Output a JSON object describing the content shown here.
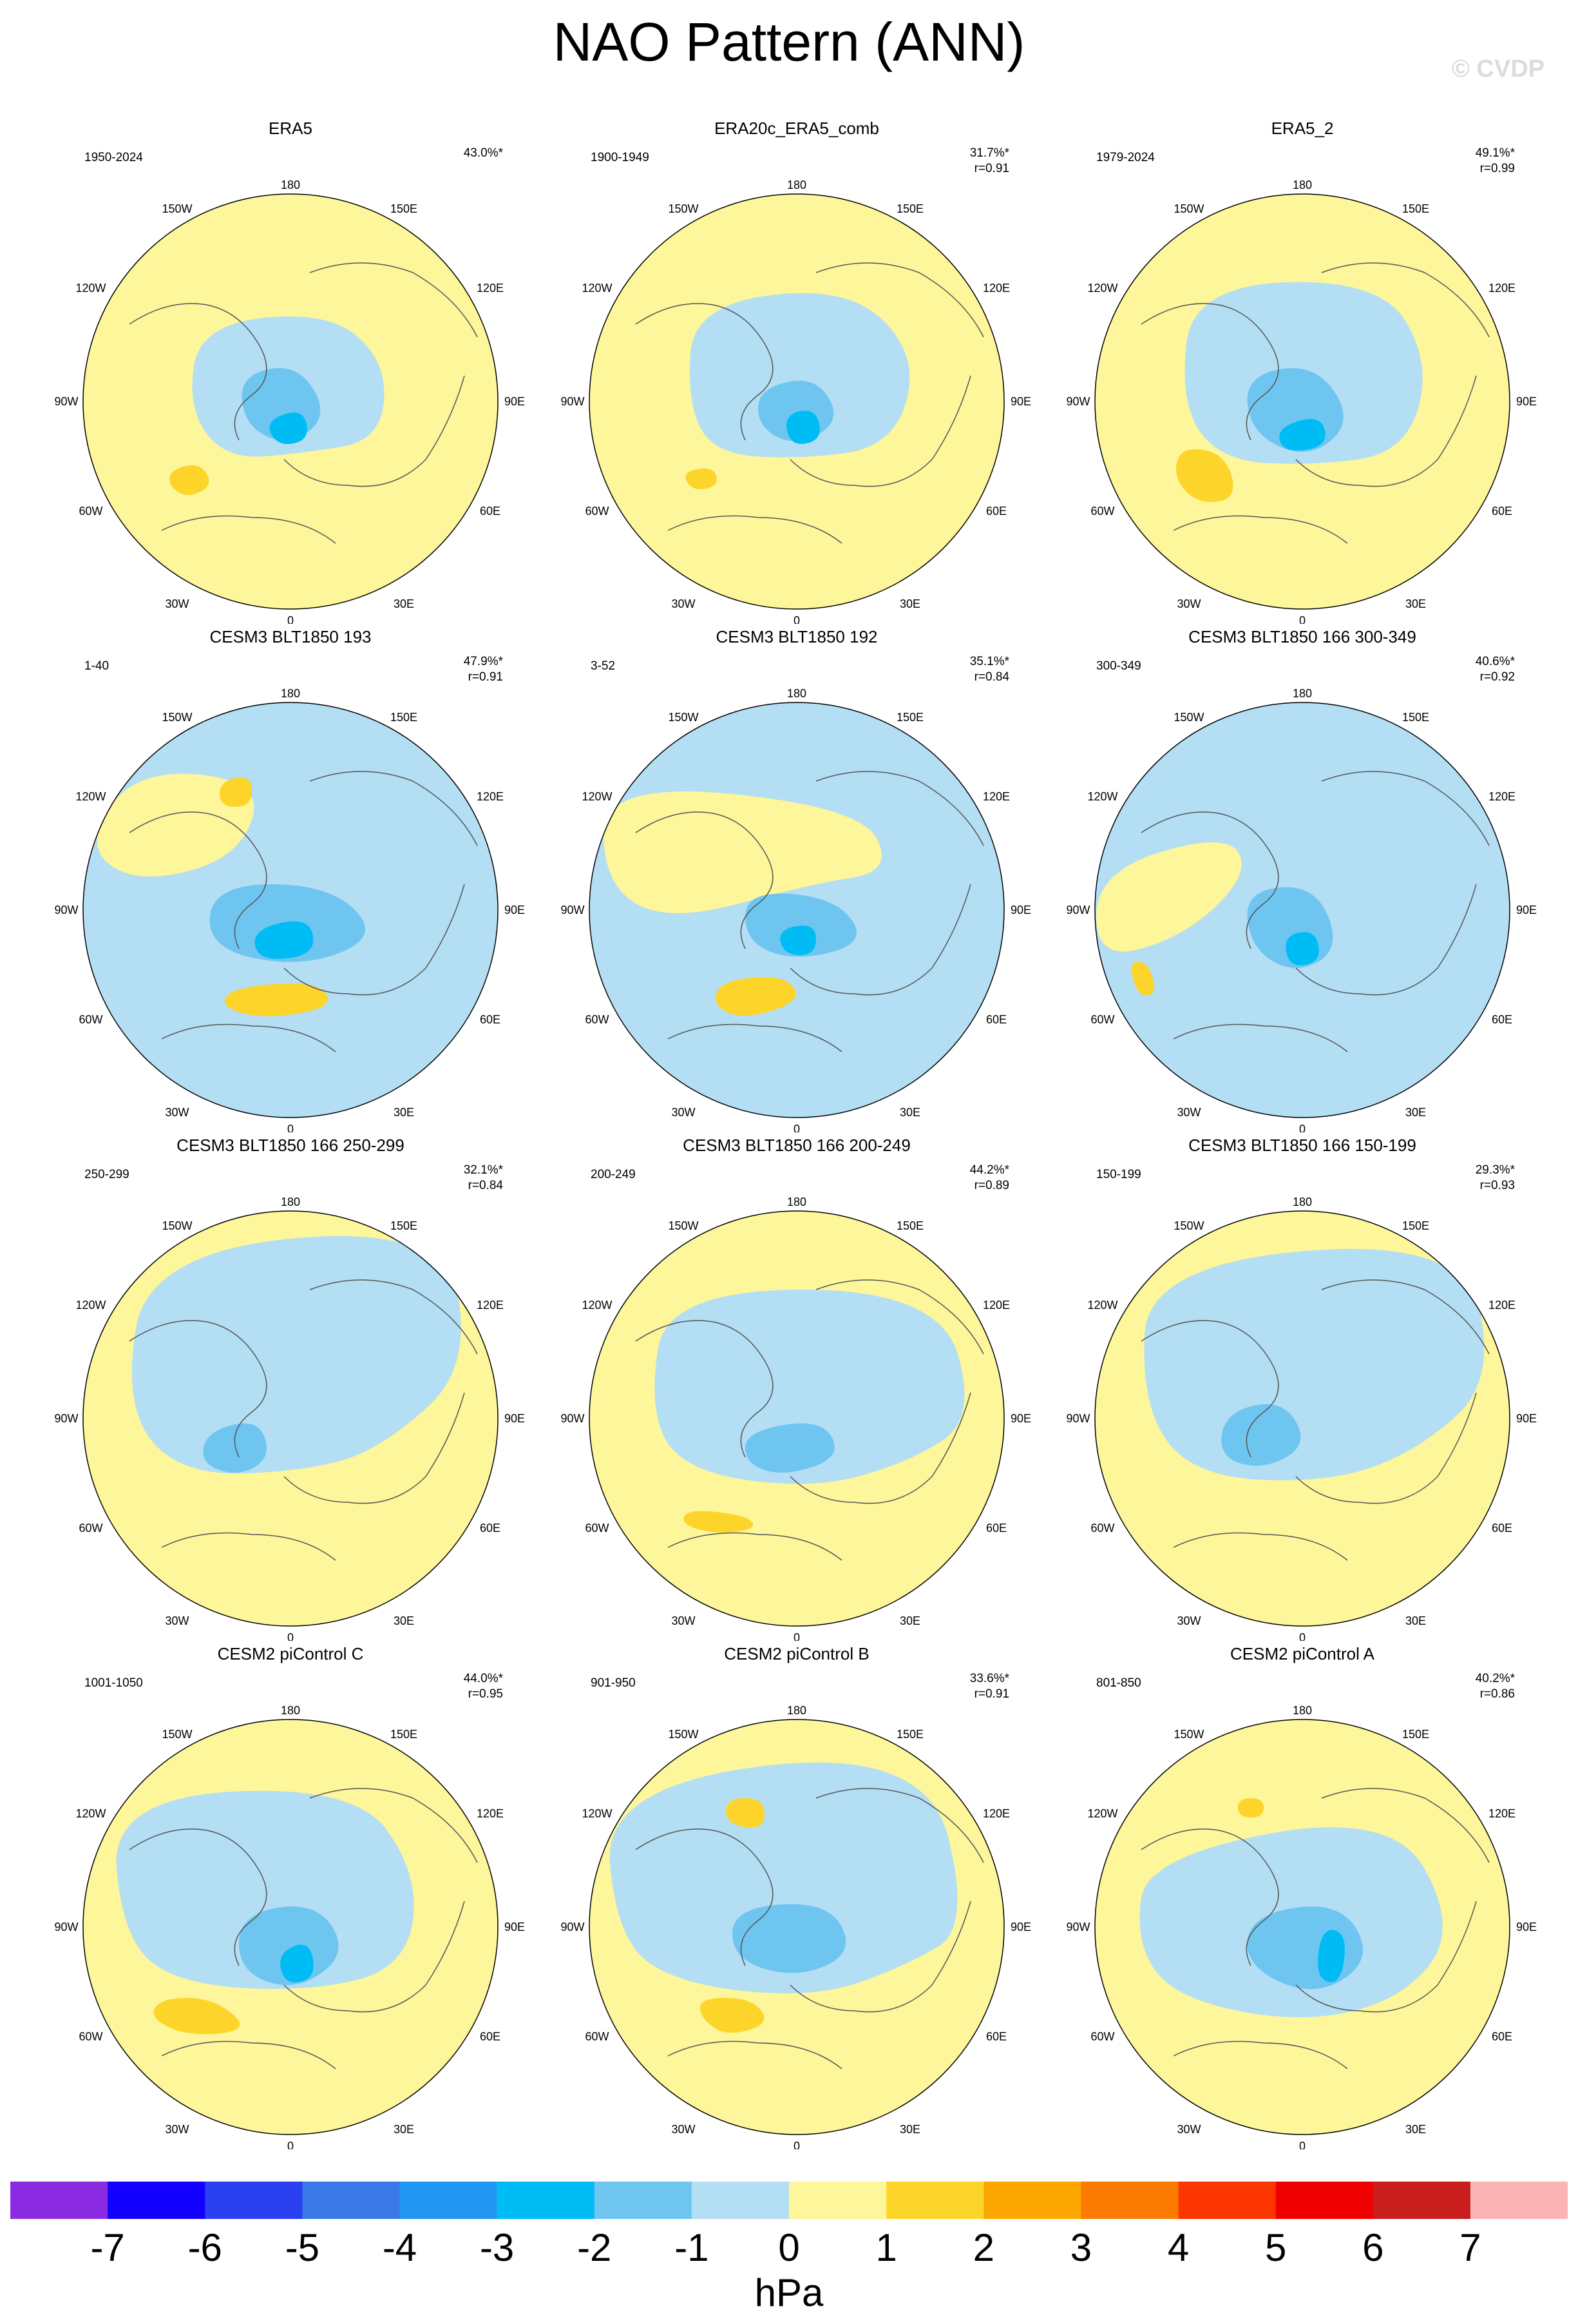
{
  "title": "NAO Pattern (ANN)",
  "copyright": "© CVDP",
  "lon_labels": {
    "top": "180",
    "bottom": "0",
    "left": [
      "150W",
      "120W",
      "90W",
      "60W",
      "30W"
    ],
    "right": [
      "150E",
      "120E",
      "90E",
      "60E",
      "30E"
    ]
  },
  "panels": [
    {
      "title": "ERA5",
      "years": "1950-2024",
      "pct": "43.0%*",
      "r": ""
    },
    {
      "title": "ERA20c_ERA5_comb",
      "years": "1900-1949",
      "pct": "31.7%*",
      "r": "r=0.91"
    },
    {
      "title": "ERA5_2",
      "years": "1979-2024",
      "pct": "49.1%*",
      "r": "r=0.99"
    },
    {
      "title": "CESM3 BLT1850 193",
      "years": "1-40",
      "pct": "47.9%*",
      "r": "r=0.91"
    },
    {
      "title": "CESM3 BLT1850 192",
      "years": "3-52",
      "pct": "35.1%*",
      "r": "r=0.84"
    },
    {
      "title": "CESM3 BLT1850 166 300-349",
      "years": "300-349",
      "pct": "40.6%*",
      "r": "r=0.92"
    },
    {
      "title": "CESM3 BLT1850 166 250-299",
      "years": "250-299",
      "pct": "32.1%*",
      "r": "r=0.84"
    },
    {
      "title": "CESM3 BLT1850 166 200-249",
      "years": "200-249",
      "pct": "44.2%*",
      "r": "r=0.89"
    },
    {
      "title": "CESM3 BLT1850 166 150-199",
      "years": "150-199",
      "pct": "29.3%*",
      "r": "r=0.93"
    },
    {
      "title": "CESM2 piControl C",
      "years": "1001-1050",
      "pct": "44.0%*",
      "r": "r=0.95"
    },
    {
      "title": "CESM2 piControl B",
      "years": "901-950",
      "pct": "33.6%*",
      "r": "r=0.91"
    },
    {
      "title": "CESM2 piControl A",
      "years": "801-850",
      "pct": "40.2%*",
      "r": "r=0.86"
    }
  ],
  "chart_data": {
    "type": "heatmap",
    "description_type": "polar stereographic contour maps",
    "levels": [
      -7,
      -6,
      -5,
      -4,
      -3,
      -2,
      -1,
      0,
      1,
      2,
      3,
      4,
      5,
      6,
      7
    ],
    "colors": [
      "#8a2be2",
      "#1400ff",
      "#2a3ff0",
      "#3a78e8",
      "#2196f3",
      "#00bcf5",
      "#6ec6f0",
      "#b4def4",
      "#fdf69b",
      "#fdd52a",
      "#fba700",
      "#fb7a00",
      "#fb3600",
      "#ee0000",
      "#c81e1e",
      "#fbb4b4"
    ],
    "unit": "hPa",
    "colorbar_labels": [
      "-7",
      "-6",
      "-5",
      "-4",
      "-3",
      "-2",
      "-1",
      "0",
      "1",
      "2",
      "3",
      "4",
      "5",
      "6",
      "7"
    ]
  }
}
